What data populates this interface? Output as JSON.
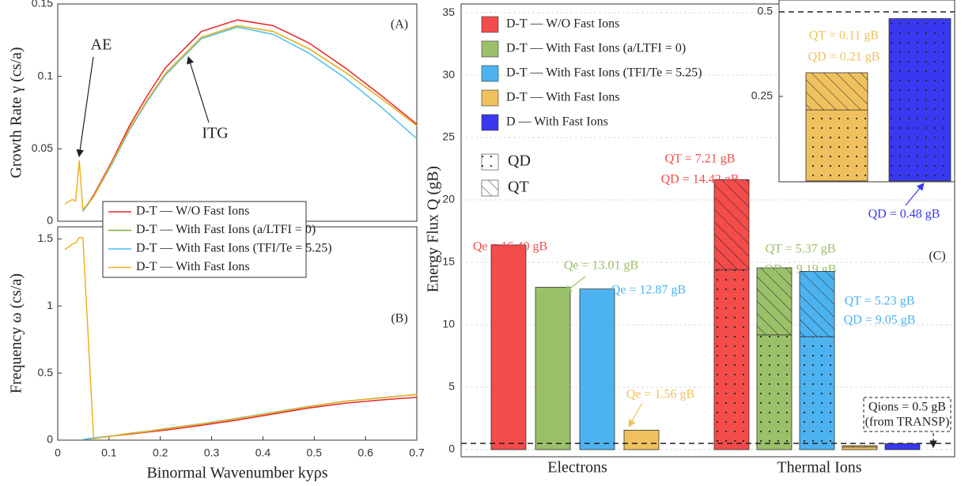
{
  "chart_data": [
    {
      "type": "line",
      "panel_label": "(A)",
      "ylabel": "Growth Rate γ (cs/a)",
      "xlim": [
        0,
        0.7
      ],
      "ylim": [
        0,
        0.15
      ],
      "yticks": [
        0,
        0.05,
        0.1,
        0.15
      ],
      "x": [
        0.014,
        0.028,
        0.035,
        0.042,
        0.049,
        0.07,
        0.105,
        0.14,
        0.175,
        0.21,
        0.28,
        0.35,
        0.42,
        0.49,
        0.56,
        0.63,
        0.7
      ],
      "annotations": [
        "AE",
        "ITG"
      ],
      "series": [
        {
          "name": "D-T — W/O Fast Ions",
          "color": "#e8262b",
          "values": [
            null,
            null,
            null,
            null,
            0.007,
            0.018,
            0.041,
            0.066,
            0.087,
            0.106,
            0.131,
            0.139,
            0.135,
            0.123,
            0.106,
            0.087,
            0.067
          ]
        },
        {
          "name": "D-T — With Fast Ions (a/LTFI = 0)",
          "color": "#77ac30",
          "values": [
            null,
            null,
            null,
            null,
            0.007,
            0.017,
            0.04,
            0.064,
            0.084,
            0.102,
            0.127,
            0.135,
            0.131,
            0.119,
            0.103,
            0.085,
            0.066
          ]
        },
        {
          "name": "D-T — With Fast Ions (TFI/Te = 5.25)",
          "color": "#4dbeee",
          "values": [
            null,
            null,
            null,
            null,
            0.007,
            0.017,
            0.039,
            0.063,
            0.083,
            0.101,
            0.126,
            0.134,
            0.129,
            0.116,
            0.099,
            0.079,
            0.057
          ]
        },
        {
          "name": "D-T — With Fast Ions",
          "color": "#edb120",
          "values": [
            0.012,
            0.015,
            0.014,
            0.042,
            0.008,
            0.017,
            0.04,
            0.064,
            0.084,
            0.102,
            0.127,
            0.135,
            0.131,
            0.119,
            0.103,
            0.085,
            0.066
          ]
        }
      ]
    },
    {
      "type": "line",
      "panel_label": "(B)",
      "ylabel": "Frequency ω (cs/a)",
      "xlabel": "Binormal Wavenumber kyρs",
      "xlim": [
        0,
        0.7
      ],
      "xticks": [
        0,
        0.1,
        0.2,
        0.3,
        0.4,
        0.5,
        0.6,
        0.7
      ],
      "ylim": [
        0,
        1.59
      ],
      "yticks": [
        0,
        0.5,
        1,
        1.5
      ],
      "x": [
        0.014,
        0.028,
        0.035,
        0.042,
        0.049,
        0.07,
        0.105,
        0.14,
        0.175,
        0.21,
        0.28,
        0.35,
        0.42,
        0.49,
        0.56,
        0.63,
        0.7
      ],
      "series": [
        {
          "color": "#e8262b",
          "values": [
            null,
            null,
            null,
            null,
            0.005,
            0.015,
            0.03,
            0.045,
            0.06,
            0.075,
            0.11,
            0.15,
            0.195,
            0.24,
            0.275,
            0.3,
            0.32
          ]
        },
        {
          "color": "#77ac30",
          "values": [
            null,
            null,
            null,
            null,
            0.005,
            0.015,
            0.03,
            0.05,
            0.065,
            0.085,
            0.12,
            0.16,
            0.205,
            0.25,
            0.29,
            0.315,
            0.34
          ]
        },
        {
          "color": "#4dbeee",
          "values": [
            null,
            null,
            null,
            null,
            0.005,
            0.016,
            0.032,
            0.052,
            0.067,
            0.087,
            0.122,
            0.163,
            0.208,
            0.252,
            0.29,
            0.316,
            0.34
          ]
        },
        {
          "color": "#edb120",
          "values": [
            1.42,
            1.46,
            1.47,
            1.51,
            1.51,
            0.01,
            0.03,
            0.05,
            0.065,
            0.085,
            0.12,
            0.16,
            0.205,
            0.25,
            0.29,
            0.315,
            0.34
          ]
        }
      ]
    },
    {
      "type": "stacked-bar",
      "panel_label": "(C)",
      "ylabel": "Energy Flux Q (gB)",
      "categories": [
        "Electrons",
        "Thermal Ions"
      ],
      "ylim": [
        -0.57,
        35.7
      ],
      "yticks": [
        0,
        5,
        10,
        15,
        20,
        25,
        30,
        35
      ],
      "grid": true,
      "pattern_legend": {
        "D": "QD",
        "T": "QT"
      },
      "reference_line": 0.5,
      "reference_label": "Qions = 0.5 gB",
      "reference_source": "(from TRANSP)",
      "inset": {
        "ylim": [
          0,
          0.535
        ],
        "yticks": [
          0.25,
          0.5
        ]
      },
      "series": [
        {
          "name": "D-T — W/O Fast Ions",
          "color": "#f44b4b",
          "electrons": 16.4,
          "electrons_label": "Qe = 16.40 gB",
          "D": 14.42,
          "D_label": "QD = 14.42 gB",
          "T": 7.21,
          "T_label": "QT = 7.21 gB"
        },
        {
          "name": "D-T — With Fast Ions (a/LTFI = 0)",
          "color": "#9bc06a",
          "electrons": 13.01,
          "electrons_label": "Qe = 13.01 gB",
          "D": 9.19,
          "D_label": "QD = 9.19 gB",
          "T": 5.37,
          "T_label": "QT = 5.37 gB"
        },
        {
          "name": "D-T — With Fast Ions (TFI/Te = 5.25)",
          "color": "#4db3f0",
          "electrons": 12.87,
          "electrons_label": "Qe = 12.87 gB",
          "D": 9.05,
          "D_label": "QD = 9.05 gB",
          "T": 5.23,
          "T_label": "QT = 5.23 gB"
        },
        {
          "name": "D-T — With Fast Ions",
          "color": "#efc15e",
          "electrons": 1.56,
          "electrons_label": "Qe = 1.56 gB",
          "D": 0.21,
          "D_label": "QD = 0.21 gB",
          "T": 0.11,
          "T_label": "QT = 0.11 gB"
        },
        {
          "name": "D — With Fast Ions",
          "color": "#3838f0",
          "electrons": null,
          "D": 0.48,
          "D_label": "QD = 0.48 gB",
          "T": null
        }
      ]
    }
  ]
}
